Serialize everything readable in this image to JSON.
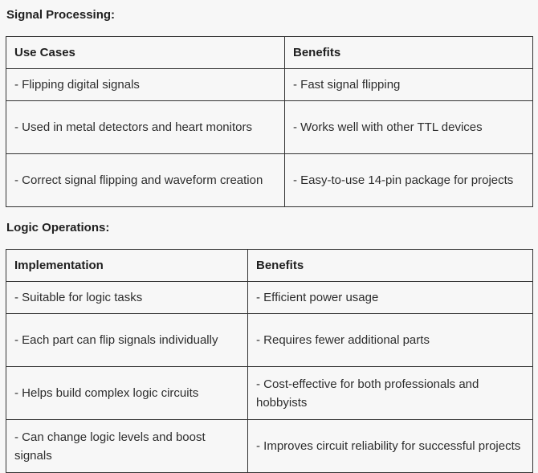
{
  "page": {
    "background_color": "#f7f7f7",
    "border_color": "#333333",
    "text_color": "#2d2d2d"
  },
  "sections": [
    {
      "heading": "Signal Processing:",
      "table": {
        "headers": [
          "Use Cases",
          "Benefits"
        ],
        "rows": [
          [
            "- Flipping digital signals",
            "- Fast signal flipping"
          ],
          [
            "- Used in metal detectors and heart monitors",
            "- Works well with other TTL devices"
          ],
          [
            "- Correct signal flipping and waveform creation",
            "- Easy-to-use 14-pin package for projects"
          ]
        ]
      }
    },
    {
      "heading": "Logic Operations:",
      "table": {
        "headers": [
          "Implementation",
          "Benefits"
        ],
        "rows": [
          [
            "- Suitable for logic tasks",
            "- Efficient power usage"
          ],
          [
            "- Each part can flip signals individually",
            "- Requires fewer additional parts"
          ],
          [
            "- Helps build complex logic circuits",
            "- Cost-effective for both professionals and hobbyists"
          ],
          [
            "- Can change logic levels and boost signals",
            "- Improves circuit reliability for successful projects"
          ]
        ]
      }
    }
  ]
}
